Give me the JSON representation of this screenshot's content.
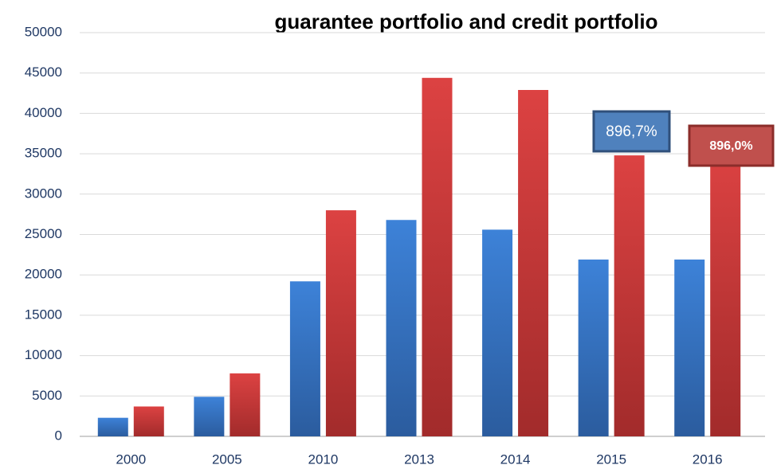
{
  "chart_data": {
    "type": "bar",
    "title": "guarantee portfolio and credit portfolio",
    "categories": [
      "2000",
      "2005",
      "2010",
      "2013",
      "2014",
      "2015",
      "2016"
    ],
    "series": [
      {
        "color": "#3a7fd5",
        "values": [
          2300,
          4900,
          19200,
          26800,
          25600,
          21900,
          21900
        ]
      },
      {
        "color": "#d94040",
        "values": [
          3700,
          7800,
          28000,
          44400,
          42900,
          34800,
          35400
        ]
      }
    ],
    "ylim": [
      0,
      50000
    ],
    "yticks": [
      0,
      5000,
      10000,
      15000,
      20000,
      25000,
      30000,
      35000,
      40000,
      45000,
      50000
    ],
    "grid": true,
    "annotations": [
      {
        "text": "896,7%",
        "color": "#4f81bd"
      },
      {
        "text": "896,0%",
        "color": "#c0504d"
      }
    ]
  }
}
